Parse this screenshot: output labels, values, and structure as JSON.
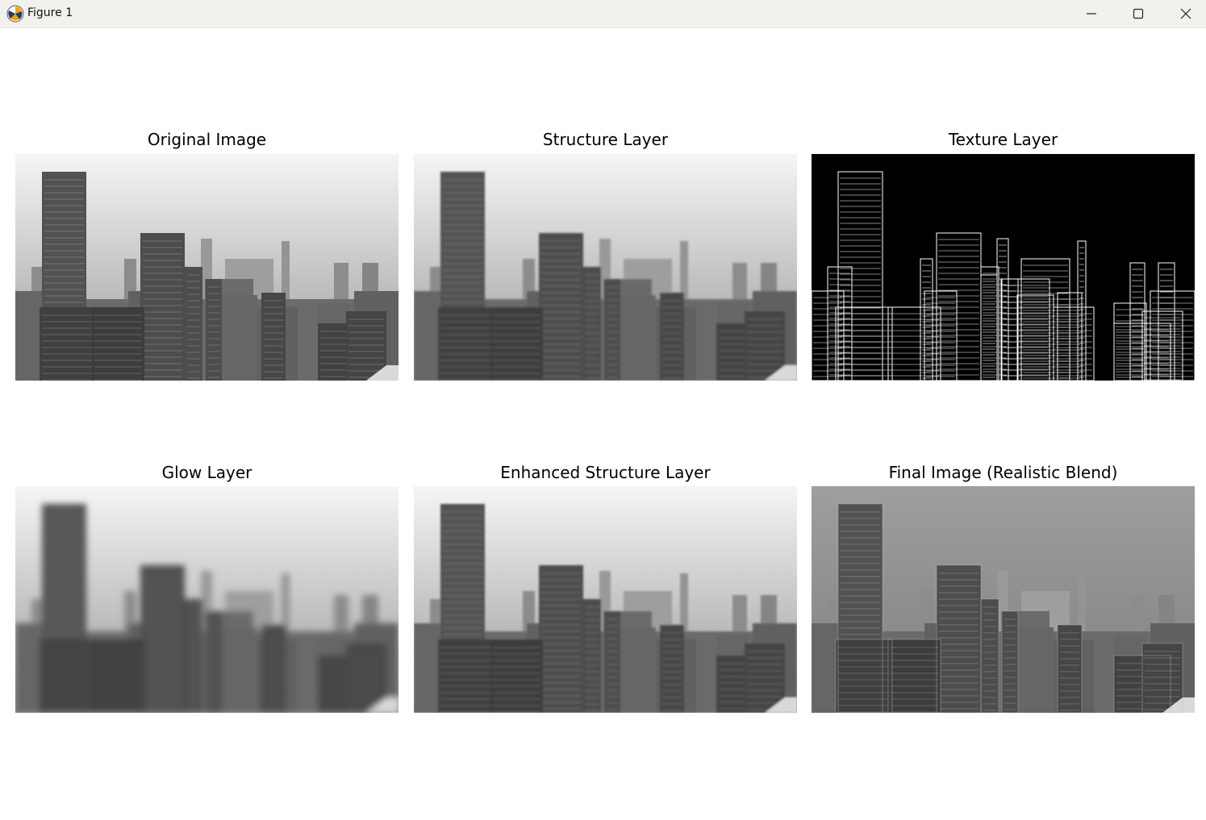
{
  "window": {
    "title": "Figure 1",
    "controls": [
      "minimize",
      "maximize",
      "close"
    ]
  },
  "panels": [
    {
      "title": "Original Image",
      "style": "original"
    },
    {
      "title": "Structure Layer",
      "style": "structure"
    },
    {
      "title": "Texture Layer",
      "style": "texture"
    },
    {
      "title": "Glow Layer",
      "style": "glow"
    },
    {
      "title": "Enhanced Structure Layer",
      "style": "enhanced"
    },
    {
      "title": "Final Image (Realistic Blend)",
      "style": "final"
    }
  ]
}
